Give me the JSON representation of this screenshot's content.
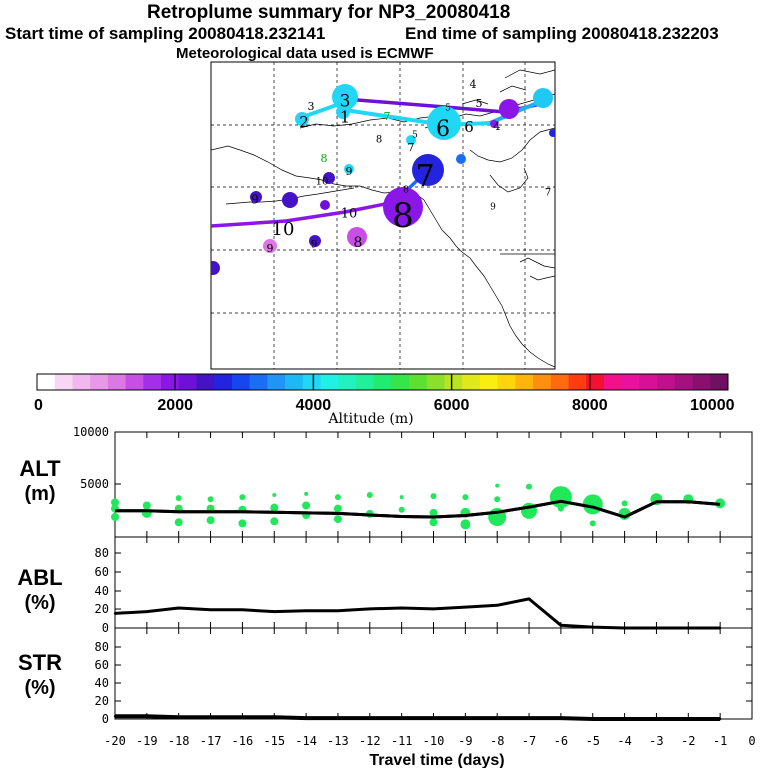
{
  "header": {
    "title": "Retroplume summary for NP3_20080418",
    "start": "Start time of sampling 20080418.232141",
    "end": "End time of sampling 20080418.232203",
    "met": "Meteorological data used is ECMWF"
  },
  "colorbar": {
    "colors": [
      "#ffffff",
      "#f8d7f5",
      "#f0b8ee",
      "#e898e8",
      "#dd77e4",
      "#c84fe6",
      "#a52fe8",
      "#8a16e8",
      "#6f10d8",
      "#4413c6",
      "#2323e0",
      "#1546f0",
      "#1a6ef4",
      "#1f95f6",
      "#1fb8f6",
      "#20d8f5",
      "#20f0e6",
      "#20f2c0",
      "#20f09a",
      "#20ec70",
      "#34e64a",
      "#5ce130",
      "#8ae02a",
      "#b8e424",
      "#e0e81c",
      "#f8ee10",
      "#ffd60c",
      "#ffb40c",
      "#ff900e",
      "#ff6a10",
      "#ff3c10",
      "#f41030",
      "#f4108a",
      "#ec10a0",
      "#d81098",
      "#c0108c",
      "#a41080",
      "#8a1070",
      "#701062"
    ],
    "tick_labels": [
      "0",
      "2000",
      "4000",
      "6000",
      "8000",
      "10000"
    ],
    "label": "Altitude (m)"
  },
  "map_labels": [
    {
      "t": "4",
      "c": "#000"
    },
    {
      "t": "5",
      "c": "#000"
    },
    {
      "t": "3",
      "c": "#000"
    },
    {
      "t": "3",
      "c": "#000"
    },
    {
      "t": "2",
      "c": "#000"
    },
    {
      "t": "1",
      "c": "#000"
    },
    {
      "t": "7",
      "c": "#0a0"
    },
    {
      "t": "6",
      "c": "#000"
    },
    {
      "t": "6",
      "c": "#000"
    },
    {
      "t": "5",
      "c": "#000"
    },
    {
      "t": "4",
      "c": "#000"
    },
    {
      "t": "5",
      "c": "#000"
    },
    {
      "t": "8",
      "c": "#000"
    },
    {
      "t": "7",
      "c": "#000"
    },
    {
      "t": "8",
      "c": "#0a0"
    },
    {
      "t": "9",
      "c": "#000"
    },
    {
      "t": "7",
      "c": "#000"
    },
    {
      "t": "8",
      "c": "#000"
    },
    {
      "t": "10",
      "c": "#000"
    },
    {
      "t": "10",
      "c": "#000"
    },
    {
      "t": "10",
      "c": "#000"
    },
    {
      "t": "8",
      "c": "#000"
    },
    {
      "t": "9",
      "c": "#000"
    },
    {
      "t": "9",
      "c": "#000"
    },
    {
      "t": "9",
      "c": "#000"
    },
    {
      "t": "8",
      "c": "#000"
    },
    {
      "t": "9",
      "c": "#000"
    },
    {
      "t": "7",
      "c": "#000"
    }
  ],
  "panels": {
    "alt_label": "ALT",
    "alt_unit": "(m)",
    "abl_label": "ABL",
    "abl_unit": "(%)",
    "str_label": "STR",
    "str_unit": "(%)"
  },
  "chart_data": {
    "type": "line",
    "x": [
      -20,
      -19,
      -18,
      -17,
      -16,
      -15,
      -14,
      -13,
      -12,
      -11,
      -10,
      -9,
      -8,
      -7,
      -6,
      -5,
      -4,
      -3,
      -2,
      -1
    ],
    "xlabel": "Travel time (days)",
    "x_tick_labels": [
      "-20",
      "-19",
      "-18",
      "-17",
      "-16",
      "-15",
      "-14",
      "-13",
      "-12",
      "-11",
      "-10",
      "-9",
      "-8",
      "-7",
      "-6",
      "-5",
      "-4",
      "-3",
      "-2",
      "-1",
      "0"
    ],
    "xlim": [
      -20,
      0
    ],
    "alt": {
      "ylabel": "ALT (m)",
      "ylim": [
        0,
        10000
      ],
      "y_tick_labels": [
        "10000",
        "5000"
      ],
      "series": [
        {
          "name": "altitude",
          "values": [
            2500,
            2500,
            2400,
            2400,
            2400,
            2350,
            2300,
            2250,
            2100,
            1950,
            1900,
            2050,
            2350,
            2850,
            3400,
            2850,
            1900,
            3350,
            3350,
            3100
          ]
        }
      ]
    },
    "abl": {
      "ylabel": "ABL (%)",
      "ylim": [
        0,
        100
      ],
      "y_tick_labels": [
        "80",
        "60",
        "40",
        "20",
        "0"
      ],
      "series": [
        {
          "name": "abl",
          "values": [
            16,
            18,
            22,
            20,
            20,
            18,
            19,
            19,
            21,
            22,
            21,
            23,
            25,
            32,
            3,
            1,
            0,
            0,
            0,
            0
          ]
        }
      ]
    },
    "str": {
      "ylabel": "STR (%)",
      "ylim": [
        0,
        100
      ],
      "y_tick_labels": [
        "80",
        "60",
        "40",
        "20",
        "0"
      ],
      "series": [
        {
          "name": "str",
          "values": [
            3,
            3,
            2,
            2,
            2,
            2,
            1,
            1,
            1,
            1,
            1,
            1,
            1,
            1,
            1,
            0,
            0,
            0,
            0,
            0
          ]
        }
      ]
    }
  }
}
